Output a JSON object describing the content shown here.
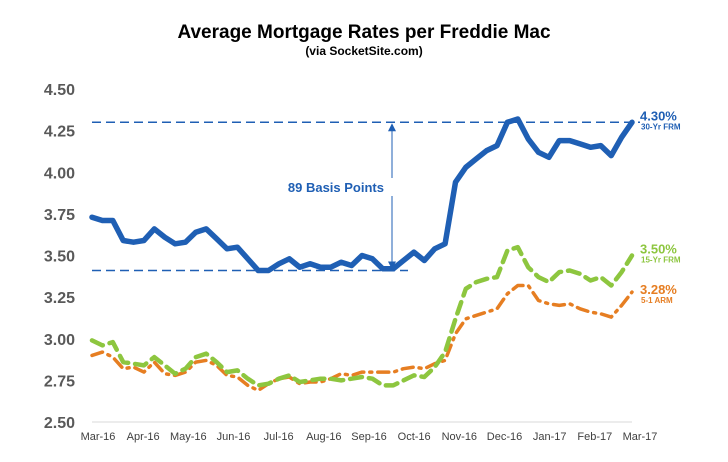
{
  "chart_data": {
    "type": "line",
    "title": "Average Mortgage Rates per Freddie Mac",
    "subtitle": "(via SocketSite.com)",
    "xlabel": "",
    "ylabel": "",
    "ylim": [
      2.5,
      4.5
    ],
    "yticks": [
      "2.50",
      "2.75",
      "3.00",
      "3.25",
      "3.50",
      "3.75",
      "4.00",
      "4.25",
      "4.50"
    ],
    "x_tick_labels": [
      "Mar-16",
      "Apr-16",
      "May-16",
      "Jun-16",
      "Jul-16",
      "Aug-16",
      "Sep-16",
      "Oct-16",
      "Nov-16",
      "Dec-16",
      "Jan-17",
      "Feb-17",
      "Mar-17"
    ],
    "grid": false,
    "series": [
      {
        "name": "30-Yr FRM",
        "color": "#1f5fb4",
        "style": "solid",
        "end_label": "4.30%",
        "values": [
          3.73,
          3.71,
          3.71,
          3.59,
          3.58,
          3.59,
          3.66,
          3.61,
          3.57,
          3.58,
          3.64,
          3.66,
          3.6,
          3.54,
          3.55,
          3.48,
          3.41,
          3.41,
          3.45,
          3.48,
          3.43,
          3.45,
          3.43,
          3.43,
          3.46,
          3.44,
          3.5,
          3.48,
          3.42,
          3.42,
          3.47,
          3.52,
          3.47,
          3.54,
          3.57,
          3.94,
          4.03,
          4.08,
          4.13,
          4.16,
          4.3,
          4.32,
          4.2,
          4.12,
          4.09,
          4.19,
          4.19,
          4.17,
          4.15,
          4.16,
          4.1,
          4.21,
          4.3
        ]
      },
      {
        "name": "15-Yr FRM",
        "color": "#8dc63f",
        "style": "dashed",
        "end_label": "3.50%",
        "values": [
          2.99,
          2.96,
          2.98,
          2.86,
          2.85,
          2.84,
          2.89,
          2.84,
          2.79,
          2.82,
          2.89,
          2.91,
          2.86,
          2.8,
          2.81,
          2.76,
          2.72,
          2.73,
          2.76,
          2.78,
          2.74,
          2.75,
          2.76,
          2.76,
          2.75,
          2.76,
          2.77,
          2.76,
          2.72,
          2.72,
          2.75,
          2.78,
          2.77,
          2.83,
          2.92,
          3.12,
          3.3,
          3.34,
          3.36,
          3.37,
          3.53,
          3.55,
          3.43,
          3.37,
          3.34,
          3.4,
          3.41,
          3.39,
          3.35,
          3.37,
          3.32,
          3.4,
          3.5
        ]
      },
      {
        "name": "5-1 ARM",
        "color": "#e67e22",
        "style": "dash-dot",
        "end_label": "3.28%",
        "values": [
          2.9,
          2.92,
          2.89,
          2.82,
          2.83,
          2.8,
          2.86,
          2.79,
          2.78,
          2.8,
          2.86,
          2.87,
          2.84,
          2.78,
          2.77,
          2.72,
          2.69,
          2.73,
          2.76,
          2.77,
          2.73,
          2.74,
          2.74,
          2.76,
          2.79,
          2.78,
          2.8,
          2.8,
          2.8,
          2.8,
          2.82,
          2.83,
          2.82,
          2.85,
          2.87,
          3.03,
          3.12,
          3.14,
          3.16,
          3.18,
          3.27,
          3.32,
          3.32,
          3.23,
          3.21,
          3.2,
          3.21,
          3.18,
          3.16,
          3.15,
          3.13,
          3.2,
          3.28
        ]
      }
    ],
    "annotations": {
      "bracket_label": "89 Basis Points",
      "bracket_low": 3.41,
      "bracket_high": 4.3
    }
  }
}
